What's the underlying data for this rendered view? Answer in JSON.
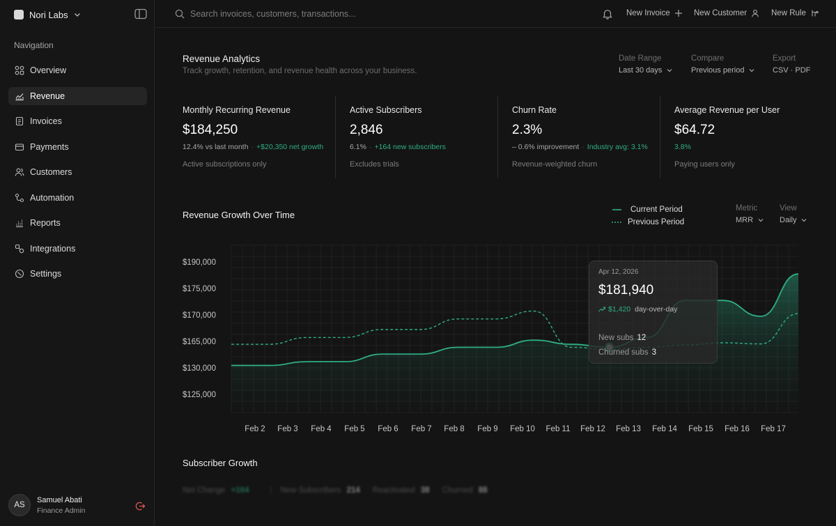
{
  "brand": {
    "name": "Nori Labs"
  },
  "sidebar": {
    "heading": "Navigation",
    "items": [
      {
        "label": "Overview",
        "icon": "overview-icon"
      },
      {
        "label": "Revenue",
        "icon": "revenue-icon",
        "active": true
      },
      {
        "label": "Invoices",
        "icon": "invoice-icon"
      },
      {
        "label": "Payments",
        "icon": "card-icon"
      },
      {
        "label": "Customers",
        "icon": "customers-icon"
      },
      {
        "label": "Automation",
        "icon": "automation-icon"
      },
      {
        "label": "Reports",
        "icon": "reports-icon"
      },
      {
        "label": "Integrations",
        "icon": "integrations-icon"
      },
      {
        "label": "Settings",
        "icon": "settings-icon"
      }
    ]
  },
  "user": {
    "initials": "AS",
    "name": "Samuel Abati",
    "role": "Finance Admin"
  },
  "topbar": {
    "search_placeholder": "Search invoices, customers, transactions...",
    "new_invoice": "New Invoice",
    "new_customer": "New Customer",
    "new_rule": "New Rule"
  },
  "page": {
    "title": "Revenue Analytics",
    "subtitle": "Track growth, retention, and revenue health across your business."
  },
  "filters": {
    "date_range": {
      "label": "Date Range",
      "value": "Last 30 days"
    },
    "compare": {
      "label": "Compare",
      "value": "Previous period"
    },
    "export": {
      "label": "Export",
      "value": "CSV · PDF"
    }
  },
  "kpis": [
    {
      "label": "Monthly Recurring Revenue",
      "value": "$184,250",
      "change": "12.4% vs last month",
      "extra": "+$20,350 net growth",
      "note": "Active subscriptions only"
    },
    {
      "label": "Active Subscribers",
      "value": "2,846",
      "change": "6.1%",
      "extra": "+164 new subscribers",
      "note": "Excludes trials"
    },
    {
      "label": "Churn Rate",
      "value": "2.3%",
      "change": "– 0.6% improvement",
      "extra": "Industry avg: 3.1%",
      "note": "Revenue-weighted churn"
    },
    {
      "label": "Average Revenue per User",
      "value": "$64.72",
      "change": "",
      "extra": "3.8%",
      "note": "Paying users only"
    }
  ],
  "chart_section": {
    "title": "Revenue Growth Over Time",
    "legend_current": "Current Period",
    "legend_previous": "Previous Period",
    "metric": {
      "label": "Metric",
      "value": "MRR"
    },
    "view": {
      "label": "View",
      "value": "Daily"
    }
  },
  "chart_data": {
    "type": "area",
    "y_tick_labels": [
      "$190,000",
      "$175,000",
      "$170,000",
      "$165,000",
      "$130,000",
      "$125,000"
    ],
    "categories": [
      "Feb 2",
      "Feb 3",
      "Feb 4",
      "Feb 5",
      "Feb 6",
      "Feb 7",
      "Feb 8",
      "Feb 9",
      "Feb 10",
      "Feb 11",
      "Feb 12",
      "Feb 13",
      "Feb 14",
      "Feb 15",
      "Feb 16",
      "Feb 17"
    ],
    "series": [
      {
        "name": "Current Period",
        "values": [
          135000,
          135000,
          140000,
          140000,
          150000,
          150000,
          159000,
          159000,
          165500,
          163000,
          159000,
          166000,
          173000,
          173000,
          170000,
          184000
        ]
      },
      {
        "name": "Previous Period",
        "values": [
          163000,
          163000,
          166000,
          166000,
          167500,
          167500,
          169500,
          169500,
          171000,
          159000,
          156000,
          159000,
          162000,
          165000,
          163500,
          170500
        ]
      }
    ],
    "grid": true,
    "legend_position": "top-right",
    "highlight": {
      "category": "Feb 12",
      "series": "Current Period"
    }
  },
  "tooltip": {
    "date": "Apr 12, 2026",
    "value": "$181,940",
    "delta": "$1,420",
    "delta_label": "day-over-day",
    "new_subs_label": "New subs",
    "new_subs": "12",
    "churned_label": "Churned subs",
    "churned": "3"
  },
  "subscriber_section": {
    "title": "Subscriber Growth",
    "net_change_label": "Net Change",
    "net_change": "+164",
    "new_label": "New Subscribers",
    "new": "214",
    "reactivated_label": "Reactivated",
    "reactivated": "38",
    "churned_label": "Churned",
    "churned": "88"
  },
  "colors": {
    "accent": "#2fae86",
    "background": "#141414",
    "sidebar": "#161616",
    "danger": "#e0584f"
  }
}
